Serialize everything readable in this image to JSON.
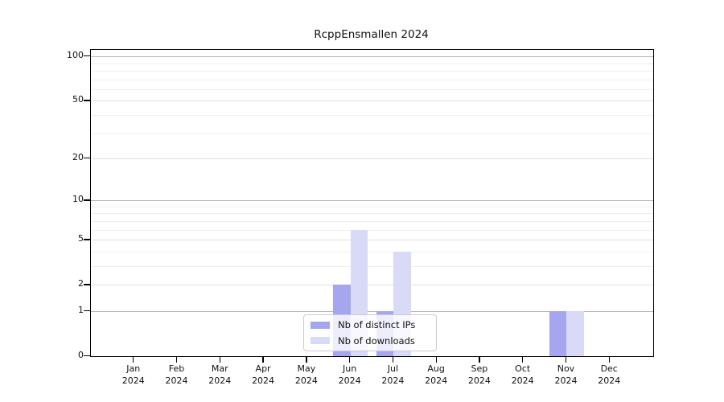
{
  "chart_data": {
    "type": "bar",
    "title": "RcppEnsmallen 2024",
    "categories": [
      "Jan",
      "Feb",
      "Mar",
      "Apr",
      "May",
      "Jun",
      "Jul",
      "Aug",
      "Sep",
      "Oct",
      "Nov",
      "Dec"
    ],
    "x_year": "2024",
    "series": [
      {
        "name": "Nb of distinct IPs",
        "color": "#a6a6f0",
        "values": [
          0,
          0,
          0,
          0,
          0,
          2,
          1,
          0,
          0,
          0,
          1,
          0
        ]
      },
      {
        "name": "Nb of downloads",
        "color": "#d9d9f8",
        "values": [
          0,
          0,
          0,
          0,
          0,
          6,
          4,
          0,
          0,
          0,
          1,
          0
        ]
      }
    ],
    "ylabel": "",
    "xlabel": "",
    "yscale": "log1p",
    "yticks": [
      0,
      1,
      2,
      5,
      10,
      20,
      50,
      100
    ],
    "ylim": [
      0,
      112
    ],
    "gridlines": {
      "major": [
        1,
        10,
        100
      ],
      "mid": [
        2,
        5,
        20,
        50
      ],
      "minor": [
        3,
        4,
        6,
        7,
        8,
        9,
        30,
        40,
        60,
        70,
        80,
        90
      ]
    },
    "grid_colors": {
      "major": "#b7b7b7",
      "mid": "#dfdfdf",
      "minor": "#efefef"
    },
    "legend_position": "bottom-center"
  }
}
